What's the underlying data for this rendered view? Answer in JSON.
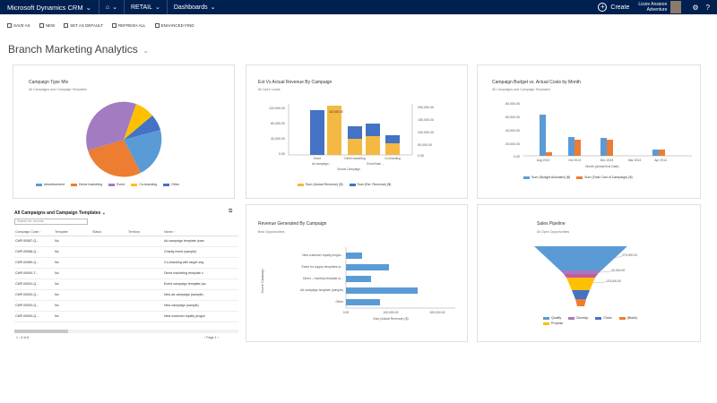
{
  "topbar": {
    "app_name": "Microsoft Dynamics CRM",
    "area": "RETAIL",
    "section": "Dashboards",
    "create_label": "Create",
    "user_name": "Lizzie Ansieon",
    "user_org": "Adventure"
  },
  "commands": [
    {
      "label": "SAVE AS",
      "icon": "save-icon"
    },
    {
      "label": "NEW",
      "icon": "new-icon"
    },
    {
      "label": "SET AS DEFAULT",
      "icon": "default-icon"
    },
    {
      "label": "REFRESH ALL",
      "icon": "refresh-icon"
    },
    {
      "label": "ENHANCED FIND",
      "icon": "find-icon"
    }
  ],
  "dashboard_title": "Branch Marketing Analytics",
  "panels": {
    "pie": {
      "title": "Campaign Type Mix",
      "subtitle": "All Campaigns and Campaign Templates",
      "legend": [
        "Advertisement",
        "Direct marketing",
        "Event",
        "Co-branding",
        "Other"
      ]
    },
    "budget_revenue": {
      "title": "Est Vs Actual Revenue By Campaign",
      "subtitle": "All Open Leads",
      "xlabel": "Source Campaign",
      "legend": [
        "Sum (Actual Revenue) ($)",
        "Sum (Est. Revenue) ($)"
      ],
      "left_ticks": [
        "120,000.00",
        "80,000.00",
        "40,000.00",
        "0.00"
      ],
      "right_ticks": [
        "200,000.00",
        "150,000.00",
        "100,000.00",
        "50,000.00",
        "0.00"
      ],
      "categories": [
        "Event",
        "Direct marketing",
        "Event",
        "Co-branding",
        "New campaign"
      ],
      "cat_lines": [
        "Ad campaign ...",
        "Event flash ..."
      ],
      "value_label": "110,000.00"
    },
    "budget_cost": {
      "title": "Campaign Budget vs. Actual Costs by Month",
      "subtitle": "All Campaigns and Campaign Templates",
      "ticks": [
        "80,000.00",
        "60,000.00",
        "40,000.00",
        "20,000.00",
        "0.00"
      ],
      "months": [
        "Aug 2013",
        "Oct 2013",
        "Dec 2013",
        "Mar 2014",
        "Apr 2014"
      ],
      "xlabel": "Month (Actual End Date)",
      "legend": [
        "Sum (Budget Allocated) ($)",
        "Sum (Total Cost of Campaign) ($)"
      ]
    },
    "revenue": {
      "title": "Revenue Generated By Campaign",
      "subtitle": "Best Opportunities",
      "ylabel": "Source Campaign",
      "xlabel": "Sum (Actual Revenue) ($)",
      "ticks": [
        "0.00",
        "100,000.00",
        "200,000.00"
      ],
      "categories": [
        "New customer loyalty progra...",
        "Event for supply templates (s...",
        "Direct – monthly template (s...",
        "Ad campaign template (sample)",
        "Other"
      ]
    },
    "funnel": {
      "title": "Sales Pipeline",
      "subtitle": "All Open Opportunities",
      "labels": [
        "270,000.00",
        "40,000.00",
        "120,000.00"
      ],
      "legend": [
        "Qualify",
        "Develop",
        "Propose",
        "Close",
        "(Blank)"
      ]
    }
  },
  "grid": {
    "title": "All Campaigns and Campaign Templates",
    "search_placeholder": "Search for records",
    "columns": [
      "Campaign Code ↑",
      "Template",
      "Status",
      "Territory",
      "Name ↑"
    ],
    "rows": [
      [
        "CMP-00087-Q...",
        "No",
        "",
        "",
        "Ad campaign template (sam"
      ],
      [
        "CMP-00088-Q...",
        "No",
        "",
        "",
        "Charity event (sample)"
      ],
      [
        "CMP-00089-Q...",
        "No",
        "",
        "",
        "Co-branding with target seg"
      ],
      [
        "CMP-00090-T...",
        "No",
        "",
        "",
        "Direct marketing template c"
      ],
      [
        "CMP-00091-Q...",
        "No",
        "",
        "",
        "Event campaign template (sa"
      ],
      [
        "CMP-00092-Q...",
        "No",
        "",
        "",
        "New ad campaign (sample)"
      ],
      [
        "CMP-00093-Q...",
        "No",
        "",
        "",
        "New campaign (sample)"
      ],
      [
        "CMP-00094-Q...",
        "No",
        "",
        "",
        "New customer loyalty progra"
      ]
    ],
    "footer_left": "1 - 8 of 8",
    "footer_right": "Page 1"
  },
  "colors": {
    "nav": "#002050",
    "blue": "#5b9bd5",
    "orange": "#ed7d31",
    "purple": "#a27bc0",
    "yellow": "#ffc000",
    "navy": "#4472c4",
    "gold": "#f4b942"
  }
}
